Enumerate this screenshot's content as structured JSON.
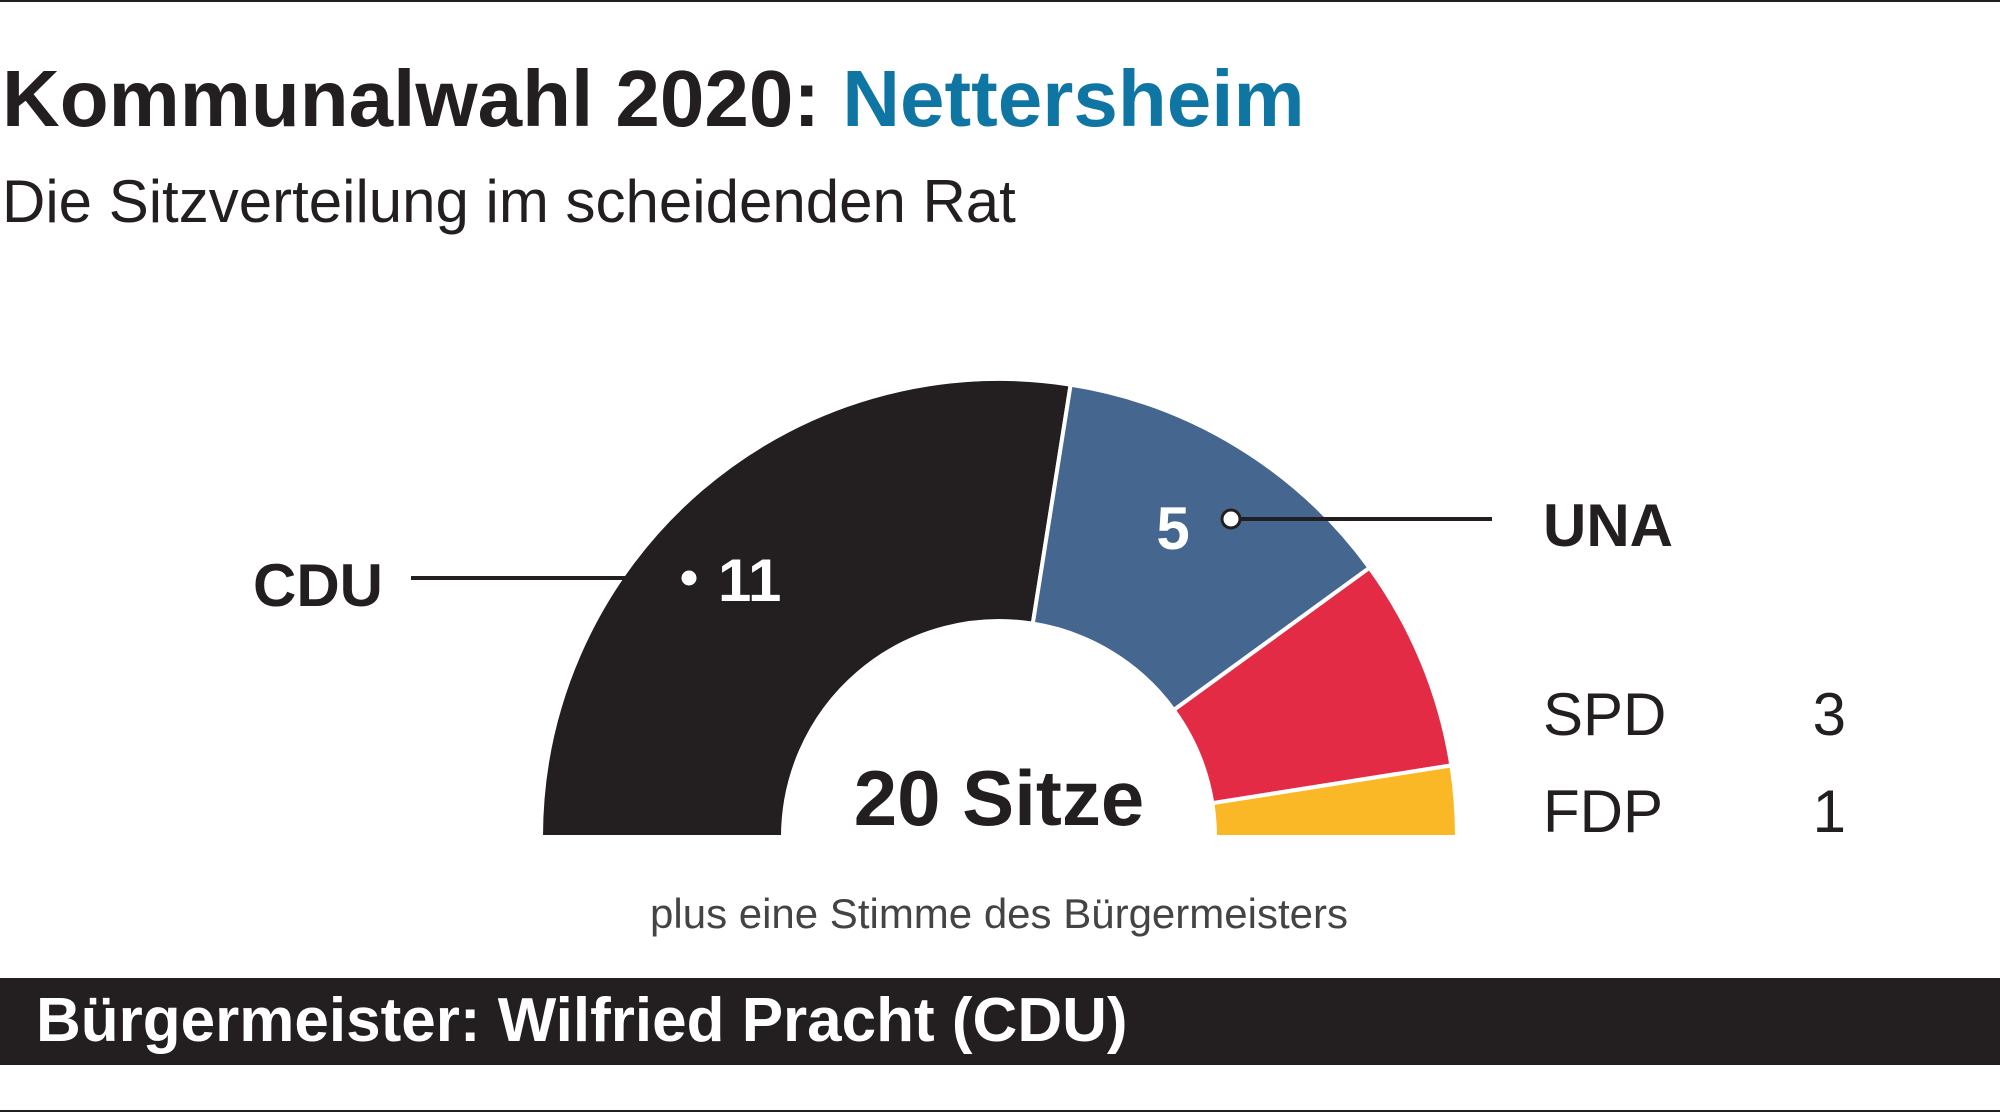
{
  "chart_data": {
    "type": "half-donut",
    "title": "Kommunalwahl 2020:",
    "title_place": "Nettersheim",
    "subtitle": "Die Sitzverteilung im scheidenden Rat",
    "categories": [
      "CDU",
      "UNA",
      "SPD",
      "FDP"
    ],
    "values": [
      11,
      5,
      3,
      1
    ],
    "colors": [
      "#231f20",
      "#44668f",
      "#e32b45",
      "#fbb826"
    ],
    "center_label": "20 Sitze",
    "note": "plus eine Stimme des Bürgermeisters",
    "footer": "Bürgermeister: Wilfried Pracht (CDU)"
  }
}
